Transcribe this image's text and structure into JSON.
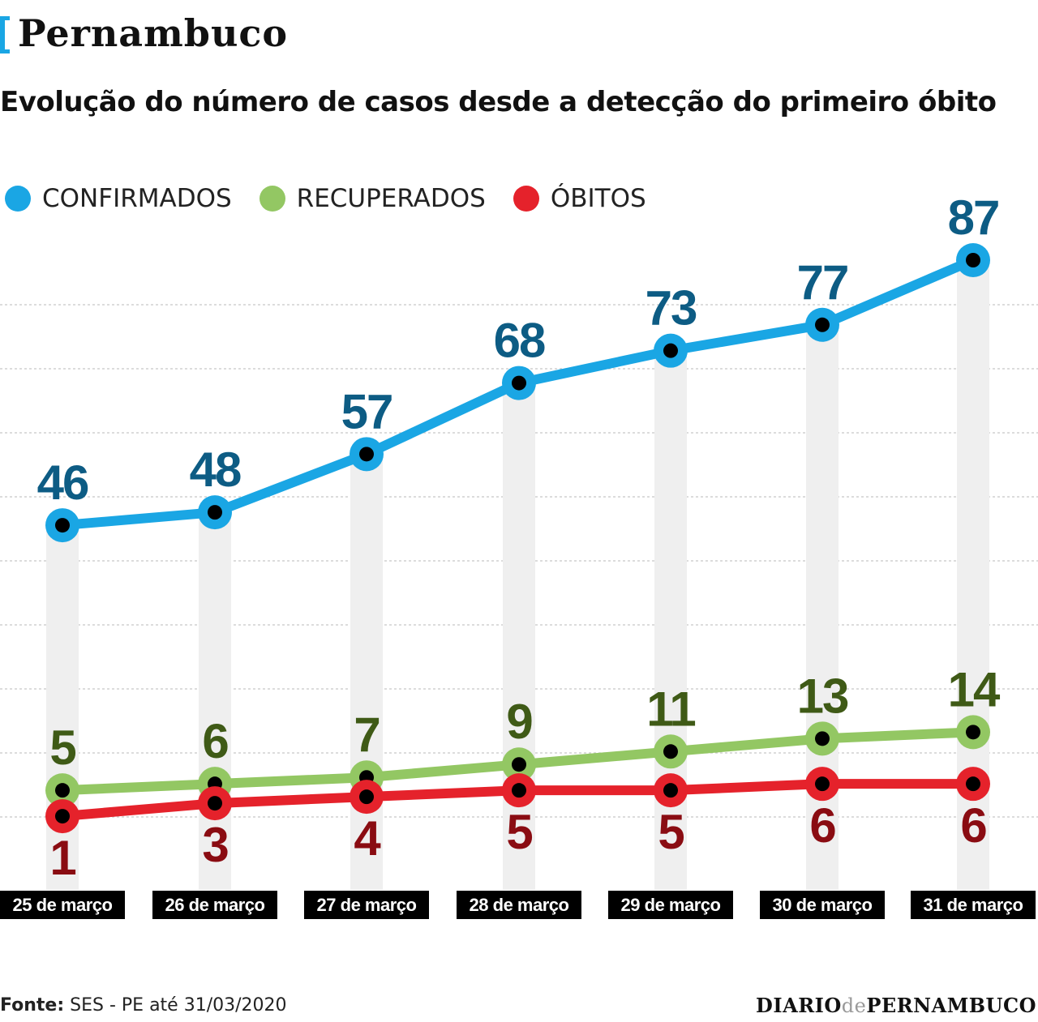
{
  "header": {
    "region": "Pernambuco",
    "subtitle": "Evolução do número de casos desde a detecção do primeiro óbito"
  },
  "legend": [
    {
      "label": "CONFIRMADOS",
      "color": "#1aa6e4"
    },
    {
      "label": "RECUPERADOS",
      "color": "#93c763"
    },
    {
      "label": "ÓBITOS",
      "color": "#e5222b"
    }
  ],
  "colors": {
    "confirmados_line": "#1aa6e4",
    "confirmados_label": "#0d5c84",
    "recuperados_line": "#93c763",
    "recuperados_label": "#3f5a16",
    "obitos_line": "#e5222b",
    "obitos_label": "#8a0c12",
    "column": "#efefef",
    "date_box": "#000000"
  },
  "chart_data": {
    "type": "line",
    "title": "Evolução do número de casos desde a detecção do primeiro óbito",
    "categories": [
      "25 de março",
      "26 de março",
      "27 de março",
      "28 de março",
      "29 de março",
      "30 de março",
      "31 de março"
    ],
    "series": [
      {
        "name": "CONFIRMADOS",
        "values": [
          46,
          48,
          57,
          68,
          73,
          77,
          87
        ]
      },
      {
        "name": "RECUPERADOS",
        "values": [
          5,
          6,
          7,
          9,
          11,
          13,
          14
        ]
      },
      {
        "name": "ÓBITOS",
        "values": [
          1,
          3,
          4,
          5,
          5,
          6,
          6
        ]
      }
    ],
    "ylim": [
      -2,
      87
    ],
    "grid": true,
    "legend_position": "top-left"
  },
  "footer": {
    "source_label": "Fonte:",
    "source_text": "SES - PE até 31/03/2020",
    "logo_left": "DIARIO",
    "logo_mid": "de",
    "logo_right": "PERNAMBUCO"
  }
}
